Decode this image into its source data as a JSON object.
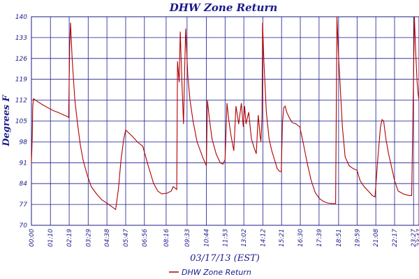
{
  "chart_data": {
    "type": "line",
    "title": "DHW Zone Return",
    "xlabel": "03/17/13 (EST)",
    "ylabel": "Degrees F",
    "ylim": [
      70,
      140
    ],
    "yticks": [
      "70",
      "77",
      "84",
      "91",
      "98",
      "105",
      "112",
      "119",
      "126",
      "133",
      "140"
    ],
    "xlim": [
      "00:00",
      "23:47"
    ],
    "xticks": [
      "00:00",
      "01:10",
      "02:19",
      "03:29",
      "04:38",
      "05:47",
      "06:56",
      "08:16",
      "09:33",
      "10:44",
      "11:53",
      "13:02",
      "14:12",
      "15:21",
      "16:30",
      "17:39",
      "18:51",
      "19:59",
      "21:08",
      "22:17",
      "23:27",
      "23:47"
    ],
    "grid": true,
    "legend": "bottom-center",
    "colors": {
      "series": "#b00000",
      "grid": "#1a1a8c",
      "text": "#1a1a8c"
    },
    "series": [
      {
        "name": "DHW Zone Return",
        "points": [
          [
            "00:00",
            91
          ],
          [
            "00:03",
            100
          ],
          [
            "00:05",
            110
          ],
          [
            "00:08",
            112.5
          ],
          [
            "00:20",
            111.7
          ],
          [
            "00:40",
            110.5
          ],
          [
            "01:00",
            109.5
          ],
          [
            "01:20",
            108.5
          ],
          [
            "01:40",
            107.8
          ],
          [
            "02:00",
            107
          ],
          [
            "02:12",
            106.5
          ],
          [
            "02:17",
            106.2
          ],
          [
            "02:21",
            130
          ],
          [
            "02:24",
            138
          ],
          [
            "02:30",
            126
          ],
          [
            "02:40",
            112
          ],
          [
            "02:50",
            104
          ],
          [
            "03:00",
            97
          ],
          [
            "03:10",
            92
          ],
          [
            "03:25",
            87
          ],
          [
            "03:40",
            83
          ],
          [
            "04:00",
            80.5
          ],
          [
            "04:20",
            78.5
          ],
          [
            "04:40",
            77.3
          ],
          [
            "05:00",
            76
          ],
          [
            "05:10",
            75.3
          ],
          [
            "05:20",
            82
          ],
          [
            "05:30",
            92
          ],
          [
            "05:40",
            99
          ],
          [
            "05:47",
            102
          ],
          [
            "06:10",
            100
          ],
          [
            "06:30",
            98
          ],
          [
            "06:50",
            96.5
          ],
          [
            "07:10",
            90
          ],
          [
            "07:30",
            84
          ],
          [
            "07:45",
            81.5
          ],
          [
            "08:00",
            80.5
          ],
          [
            "08:20",
            80.8
          ],
          [
            "08:35",
            81.5
          ],
          [
            "08:42",
            83
          ],
          [
            "08:55",
            82
          ],
          [
            "08:58",
            125
          ],
          [
            "09:04",
            118
          ],
          [
            "09:08",
            135
          ],
          [
            "09:14",
            118
          ],
          [
            "09:20",
            104
          ],
          [
            "09:24",
            122
          ],
          [
            "09:28",
            136
          ],
          [
            "09:36",
            120
          ],
          [
            "09:44",
            112
          ],
          [
            "09:55",
            105
          ],
          [
            "10:10",
            98
          ],
          [
            "10:30",
            93
          ],
          [
            "10:44",
            90
          ],
          [
            "10:48",
            112
          ],
          [
            "10:55",
            106
          ],
          [
            "11:05",
            99
          ],
          [
            "11:20",
            94
          ],
          [
            "11:35",
            91
          ],
          [
            "11:45",
            90.5
          ],
          [
            "11:53",
            92
          ],
          [
            "12:00",
            111
          ],
          [
            "12:07",
            105
          ],
          [
            "12:15",
            100
          ],
          [
            "12:25",
            95
          ],
          [
            "12:33",
            110
          ],
          [
            "12:43",
            104
          ],
          [
            "12:53",
            111
          ],
          [
            "13:00",
            103
          ],
          [
            "13:05",
            110
          ],
          [
            "13:10",
            104
          ],
          [
            "13:20",
            108
          ],
          [
            "13:30",
            99
          ],
          [
            "13:40",
            96
          ],
          [
            "13:48",
            94
          ],
          [
            "13:55",
            107
          ],
          [
            "14:02",
            100
          ],
          [
            "14:05",
            98
          ],
          [
            "14:09",
            106
          ],
          [
            "14:11",
            138
          ],
          [
            "14:16",
            125
          ],
          [
            "14:25",
            108
          ],
          [
            "14:35",
            99
          ],
          [
            "14:45",
            95
          ],
          [
            "14:55",
            92
          ],
          [
            "15:05",
            89
          ],
          [
            "15:15",
            88
          ],
          [
            "15:20",
            88
          ],
          [
            "15:24",
            104
          ],
          [
            "15:29",
            109.5
          ],
          [
            "15:34",
            110
          ],
          [
            "15:40",
            108
          ],
          [
            "15:50",
            106
          ],
          [
            "16:00",
            104.5
          ],
          [
            "16:15",
            104
          ],
          [
            "16:28",
            103
          ],
          [
            "16:40",
            98
          ],
          [
            "16:55",
            91
          ],
          [
            "17:10",
            85
          ],
          [
            "17:25",
            81
          ],
          [
            "17:40",
            79
          ],
          [
            "17:55",
            78
          ],
          [
            "18:10",
            77.5
          ],
          [
            "18:25",
            77.3
          ],
          [
            "18:40",
            77.3
          ],
          [
            "18:45",
            140
          ],
          [
            "18:50",
            128
          ],
          [
            "18:55",
            120
          ],
          [
            "19:05",
            103
          ],
          [
            "19:15",
            93
          ],
          [
            "19:30",
            90
          ],
          [
            "19:45",
            89
          ],
          [
            "19:59",
            88.5
          ],
          [
            "20:10",
            85
          ],
          [
            "20:25",
            83
          ],
          [
            "20:40",
            81.5
          ],
          [
            "20:55",
            80
          ],
          [
            "21:05",
            79.5
          ],
          [
            "21:15",
            92
          ],
          [
            "21:25",
            103
          ],
          [
            "21:31",
            105.5
          ],
          [
            "21:37",
            105
          ],
          [
            "21:45",
            99
          ],
          [
            "21:55",
            94
          ],
          [
            "22:05",
            90
          ],
          [
            "22:17",
            85
          ],
          [
            "22:30",
            81.5
          ],
          [
            "22:50",
            80.5
          ],
          [
            "23:10",
            80
          ],
          [
            "23:20",
            80
          ],
          [
            "23:27",
            120
          ],
          [
            "23:30",
            140
          ],
          [
            "23:35",
            128
          ],
          [
            "23:40",
            118
          ],
          [
            "23:44",
            114
          ],
          [
            "23:47",
            112
          ]
        ]
      }
    ]
  }
}
